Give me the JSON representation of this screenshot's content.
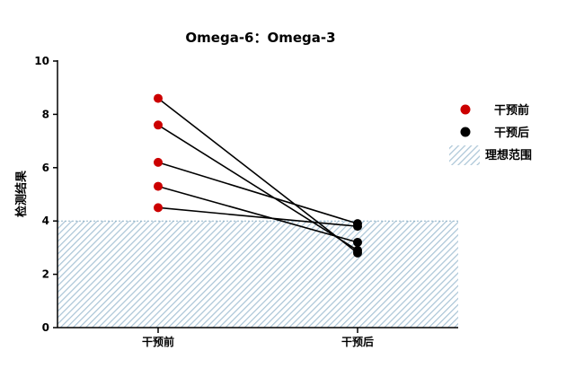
{
  "chart_data": {
    "type": "line",
    "title": "Omega-6：Omega-3",
    "xlabel": "",
    "ylabel": "检测结果",
    "categories": [
      "干预前",
      "干预后"
    ],
    "ylim": [
      0,
      10
    ],
    "yticks": [
      0,
      2,
      4,
      6,
      8,
      10
    ],
    "reference_band": {
      "label": "理想范围",
      "from": 0,
      "to": 4,
      "color": "#a9c4d6"
    },
    "series": [
      {
        "values": [
          8.6,
          2.8
        ]
      },
      {
        "values": [
          7.6,
          2.9
        ]
      },
      {
        "values": [
          6.2,
          3.9
        ]
      },
      {
        "values": [
          5.3,
          3.2
        ]
      },
      {
        "values": [
          4.5,
          3.8
        ]
      }
    ],
    "point_colors": {
      "before": "#cc0000",
      "after": "#000000"
    },
    "line_color": "#000000",
    "legend": {
      "position": "right",
      "items": [
        {
          "label": "干预前",
          "marker": "circle",
          "color": "#cc0000"
        },
        {
          "label": "干预后",
          "marker": "circle",
          "color": "#000000"
        },
        {
          "label": "理想范围",
          "marker": "hatch",
          "color": "#a9c4d6"
        }
      ]
    },
    "grid": false
  }
}
